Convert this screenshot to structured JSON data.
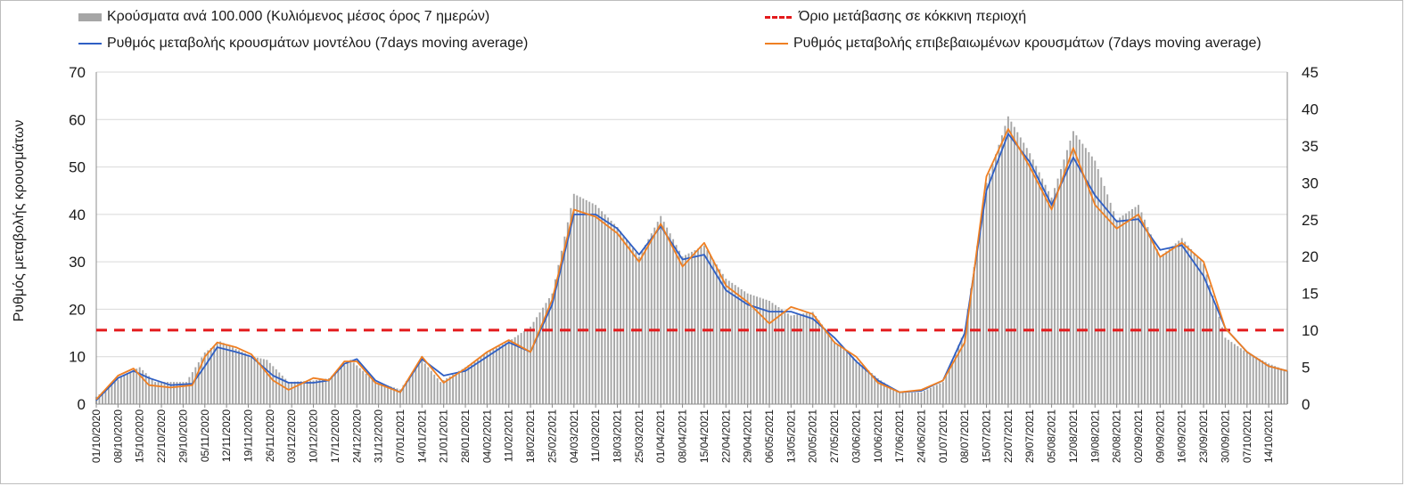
{
  "legend": {
    "bars": "Κρούσματα ανά 100.000 (Κυλιόμενος μέσος όρος 7 ημερών)",
    "threshold": "Όριο μετάβασης σε κόκκινη περιοχή",
    "model": "Ρυθμός μεταβολής κρουσμάτων μοντέλου (7days moving average)",
    "confirmed": "Ρυθμός μεταβολής επιβεβαιωμένων κρουσμάτων (7days moving average)"
  },
  "colors": {
    "bars": "#a6a6a6",
    "model": "#2f5fc4",
    "confirmed": "#ef7f22",
    "threshold": "#e31a1c"
  },
  "chart_data": {
    "type": "bar+line",
    "ylabel_left": "Ρυθμός μεταβολής κρουσμάτων",
    "ylim_left": [
      0,
      70
    ],
    "yticks_left": [
      0,
      10,
      20,
      30,
      40,
      50,
      60,
      70
    ],
    "ylim_right": [
      0,
      45
    ],
    "yticks_right": [
      0,
      5,
      10,
      15,
      20,
      25,
      30,
      35,
      40,
      45
    ],
    "threshold_left": 15.6,
    "x_range": [
      "01/10/2020",
      "20/10/2021"
    ],
    "x_ticks": [
      "01/10/2020",
      "08/10/2020",
      "15/10/2020",
      "22/10/2020",
      "29/10/2020",
      "05/11/2020",
      "12/11/2020",
      "19/11/2020",
      "26/11/2020",
      "03/12/2020",
      "10/12/2020",
      "17/12/2020",
      "24/12/2020",
      "31/12/2020",
      "07/01/2021",
      "14/01/2021",
      "21/01/2021",
      "28/01/2021",
      "04/02/2021",
      "11/02/2021",
      "18/02/2021",
      "25/02/2021",
      "04/03/2021",
      "11/03/2021",
      "18/03/2021",
      "25/03/2021",
      "01/04/2021",
      "08/04/2021",
      "15/04/2021",
      "22/04/2021",
      "29/04/2021",
      "06/05/2021",
      "13/05/2021",
      "20/05/2021",
      "27/05/2021",
      "03/06/2021",
      "10/06/2021",
      "17/06/2021",
      "24/06/2021",
      "01/07/2021",
      "08/07/2021",
      "15/07/2021",
      "22/07/2021",
      "29/07/2021",
      "05/08/2021",
      "12/08/2021",
      "19/08/2021",
      "26/08/2021",
      "02/09/2021",
      "09/09/2021",
      "16/09/2021",
      "23/09/2021",
      "30/09/2021",
      "07/10/2021",
      "14/10/2021"
    ],
    "series": [
      {
        "name": "Κρούσματα ανά 100.000 (Κυλιόμενος μέσος όρος 7 ημερών)",
        "axis": "right",
        "kind": "bar",
        "points": [
          [
            "01/10/2020",
            1
          ],
          [
            "10/10/2020",
            4
          ],
          [
            "15/10/2020",
            5
          ],
          [
            "20/10/2020",
            3
          ],
          [
            "30/10/2020",
            3
          ],
          [
            "05/11/2020",
            7
          ],
          [
            "10/11/2020",
            8.5
          ],
          [
            "15/11/2020",
            7.5
          ],
          [
            "20/11/2020",
            6.5
          ],
          [
            "25/11/2020",
            6
          ],
          [
            "02/12/2020",
            3
          ],
          [
            "10/12/2020",
            3.2
          ],
          [
            "15/12/2020",
            3.5
          ],
          [
            "22/12/2020",
            6
          ],
          [
            "30/12/2020",
            3
          ],
          [
            "07/01/2021",
            2
          ],
          [
            "14/01/2021",
            6
          ],
          [
            "20/01/2021",
            3
          ],
          [
            "28/01/2021",
            5
          ],
          [
            "04/02/2021",
            7
          ],
          [
            "11/02/2021",
            8.5
          ],
          [
            "18/02/2021",
            10.5
          ],
          [
            "25/02/2021",
            15
          ],
          [
            "04/03/2021",
            28.5
          ],
          [
            "11/03/2021",
            27
          ],
          [
            "18/03/2021",
            24
          ],
          [
            "25/03/2021",
            20
          ],
          [
            "01/04/2021",
            25.5
          ],
          [
            "08/04/2021",
            20
          ],
          [
            "15/04/2021",
            21.5
          ],
          [
            "22/04/2021",
            17
          ],
          [
            "29/04/2021",
            15
          ],
          [
            "06/05/2021",
            14
          ],
          [
            "13/05/2021",
            12
          ],
          [
            "20/05/2021",
            12.5
          ],
          [
            "27/05/2021",
            8.5
          ],
          [
            "03/06/2021",
            6
          ],
          [
            "10/06/2021",
            3.5
          ],
          [
            "17/06/2021",
            1.5
          ],
          [
            "24/06/2021",
            1.6
          ],
          [
            "01/07/2021",
            3
          ],
          [
            "08/07/2021",
            10
          ],
          [
            "15/07/2021",
            30
          ],
          [
            "22/07/2021",
            39
          ],
          [
            "29/07/2021",
            34
          ],
          [
            "05/08/2021",
            28
          ],
          [
            "12/08/2021",
            37
          ],
          [
            "19/08/2021",
            33
          ],
          [
            "26/08/2021",
            25
          ],
          [
            "02/09/2021",
            27
          ],
          [
            "09/09/2021",
            20
          ],
          [
            "16/09/2021",
            22.5
          ],
          [
            "23/09/2021",
            19
          ],
          [
            "30/09/2021",
            9
          ],
          [
            "07/10/2021",
            7
          ],
          [
            "14/10/2021",
            5.5
          ],
          [
            "20/10/2021",
            4.5
          ]
        ]
      },
      {
        "name": "Ρυθμός μεταβολής κρουσμάτων μοντέλου (7days moving average)",
        "axis": "left",
        "kind": "line",
        "points": [
          [
            "01/10/2020",
            0.8
          ],
          [
            "08/10/2020",
            5.5
          ],
          [
            "13/10/2020",
            7
          ],
          [
            "18/10/2020",
            5.5
          ],
          [
            "25/10/2020",
            4
          ],
          [
            "01/11/2020",
            4.3
          ],
          [
            "05/11/2020",
            8
          ],
          [
            "09/11/2020",
            12
          ],
          [
            "15/11/2020",
            11
          ],
          [
            "20/11/2020",
            10
          ],
          [
            "27/11/2020",
            6
          ],
          [
            "02/12/2020",
            4.5
          ],
          [
            "10/12/2020",
            4.5
          ],
          [
            "15/12/2020",
            5
          ],
          [
            "20/12/2020",
            8.5
          ],
          [
            "24/12/2020",
            9.5
          ],
          [
            "30/12/2020",
            5
          ],
          [
            "07/01/2021",
            2.5
          ],
          [
            "14/01/2021",
            9.5
          ],
          [
            "21/01/2021",
            6
          ],
          [
            "28/01/2021",
            7
          ],
          [
            "04/02/2021",
            10
          ],
          [
            "11/02/2021",
            13
          ],
          [
            "18/02/2021",
            11
          ],
          [
            "25/02/2021",
            21
          ],
          [
            "04/03/2021",
            40
          ],
          [
            "11/03/2021",
            40
          ],
          [
            "18/03/2021",
            37
          ],
          [
            "25/03/2021",
            31.5
          ],
          [
            "01/04/2021",
            37.5
          ],
          [
            "08/04/2021",
            30.5
          ],
          [
            "15/04/2021",
            31.5
          ],
          [
            "22/04/2021",
            24
          ],
          [
            "29/04/2021",
            21
          ],
          [
            "06/05/2021",
            19.5
          ],
          [
            "13/05/2021",
            19.5
          ],
          [
            "20/05/2021",
            18
          ],
          [
            "27/05/2021",
            14
          ],
          [
            "03/06/2021",
            9
          ],
          [
            "10/06/2021",
            5
          ],
          [
            "17/06/2021",
            2.5
          ],
          [
            "24/06/2021",
            2.8
          ],
          [
            "01/07/2021",
            5
          ],
          [
            "08/07/2021",
            15
          ],
          [
            "15/07/2021",
            45
          ],
          [
            "22/07/2021",
            57
          ],
          [
            "29/07/2021",
            51
          ],
          [
            "05/08/2021",
            42
          ],
          [
            "12/08/2021",
            52
          ],
          [
            "19/08/2021",
            44
          ],
          [
            "26/08/2021",
            38.5
          ],
          [
            "02/09/2021",
            39
          ],
          [
            "09/09/2021",
            32.5
          ],
          [
            "16/09/2021",
            33.5
          ],
          [
            "23/09/2021",
            27
          ],
          [
            "30/09/2021",
            16
          ],
          [
            "07/10/2021",
            11
          ],
          [
            "14/10/2021",
            8
          ],
          [
            "20/10/2021",
            7
          ]
        ]
      },
      {
        "name": "Ρυθμός μεταβολής επιβεβαιωμένων κρουσμάτων (7days moving average)",
        "axis": "left",
        "kind": "line",
        "points": [
          [
            "01/10/2020",
            1
          ],
          [
            "08/10/2020",
            6
          ],
          [
            "13/10/2020",
            7.5
          ],
          [
            "18/10/2020",
            4
          ],
          [
            "25/10/2020",
            3.5
          ],
          [
            "01/11/2020",
            4
          ],
          [
            "05/11/2020",
            10
          ],
          [
            "09/11/2020",
            13
          ],
          [
            "15/11/2020",
            12
          ],
          [
            "20/11/2020",
            10.5
          ],
          [
            "27/11/2020",
            5
          ],
          [
            "02/12/2020",
            3
          ],
          [
            "10/12/2020",
            5.5
          ],
          [
            "15/12/2020",
            5
          ],
          [
            "20/12/2020",
            9
          ],
          [
            "24/12/2020",
            9
          ],
          [
            "30/12/2020",
            4.5
          ],
          [
            "07/01/2021",
            2.5
          ],
          [
            "14/01/2021",
            10
          ],
          [
            "21/01/2021",
            4.5
          ],
          [
            "28/01/2021",
            7.5
          ],
          [
            "04/02/2021",
            11
          ],
          [
            "11/02/2021",
            13.5
          ],
          [
            "18/02/2021",
            11
          ],
          [
            "25/02/2021",
            22
          ],
          [
            "04/03/2021",
            41
          ],
          [
            "11/03/2021",
            39.5
          ],
          [
            "18/03/2021",
            36
          ],
          [
            "25/03/2021",
            30
          ],
          [
            "01/04/2021",
            38
          ],
          [
            "08/04/2021",
            29
          ],
          [
            "15/04/2021",
            34
          ],
          [
            "22/04/2021",
            25
          ],
          [
            "29/04/2021",
            21.5
          ],
          [
            "06/05/2021",
            17
          ],
          [
            "13/05/2021",
            20.5
          ],
          [
            "20/05/2021",
            19
          ],
          [
            "27/05/2021",
            13
          ],
          [
            "03/06/2021",
            10
          ],
          [
            "10/06/2021",
            4.5
          ],
          [
            "17/06/2021",
            2.5
          ],
          [
            "24/06/2021",
            3
          ],
          [
            "01/07/2021",
            5
          ],
          [
            "08/07/2021",
            13
          ],
          [
            "15/07/2021",
            48
          ],
          [
            "22/07/2021",
            58
          ],
          [
            "29/07/2021",
            50
          ],
          [
            "05/08/2021",
            41
          ],
          [
            "12/08/2021",
            54
          ],
          [
            "19/08/2021",
            42
          ],
          [
            "26/08/2021",
            37
          ],
          [
            "02/09/2021",
            40
          ],
          [
            "09/09/2021",
            31
          ],
          [
            "16/09/2021",
            34
          ],
          [
            "23/09/2021",
            30
          ],
          [
            "30/09/2021",
            16
          ],
          [
            "07/10/2021",
            11
          ],
          [
            "14/10/2021",
            8
          ],
          [
            "20/10/2021",
            7
          ]
        ]
      }
    ]
  }
}
